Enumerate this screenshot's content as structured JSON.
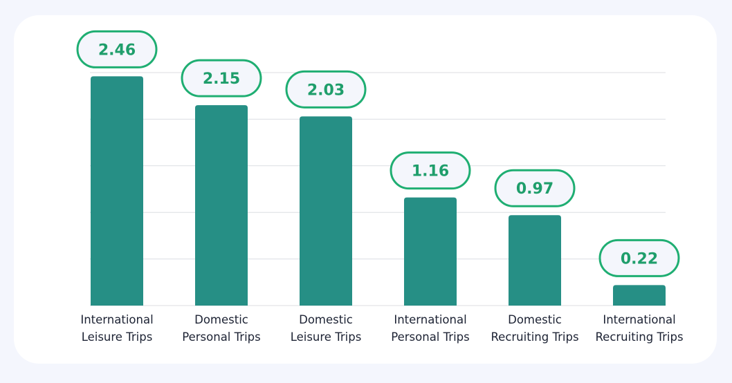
{
  "chart_data": {
    "type": "bar",
    "categories": [
      [
        "International",
        "Leisure Trips"
      ],
      [
        "Domestic",
        "Personal Trips"
      ],
      [
        "Domestic",
        "Leisure Trips"
      ],
      [
        "International",
        "Personal Trips"
      ],
      [
        "Domestic",
        "Recruiting Trips"
      ],
      [
        "International",
        "Recruiting Trips"
      ]
    ],
    "values": [
      2.46,
      2.15,
      2.03,
      1.16,
      0.97,
      0.22
    ],
    "value_labels": [
      "2.46",
      "2.15",
      "2.03",
      "1.16",
      "0.97",
      "0.22"
    ],
    "ylim": [
      0,
      2.5
    ],
    "gridlines": [
      0.5,
      1.0,
      1.5,
      2.0,
      2.5
    ],
    "grid": true,
    "colors": {
      "bar": "#268f85",
      "label_border": "#1fae72",
      "label_fill": "#f4f6fc",
      "label_text": "#1f9e6b",
      "grid": "#dcdde2",
      "axis_text": "#1c2233"
    }
  }
}
